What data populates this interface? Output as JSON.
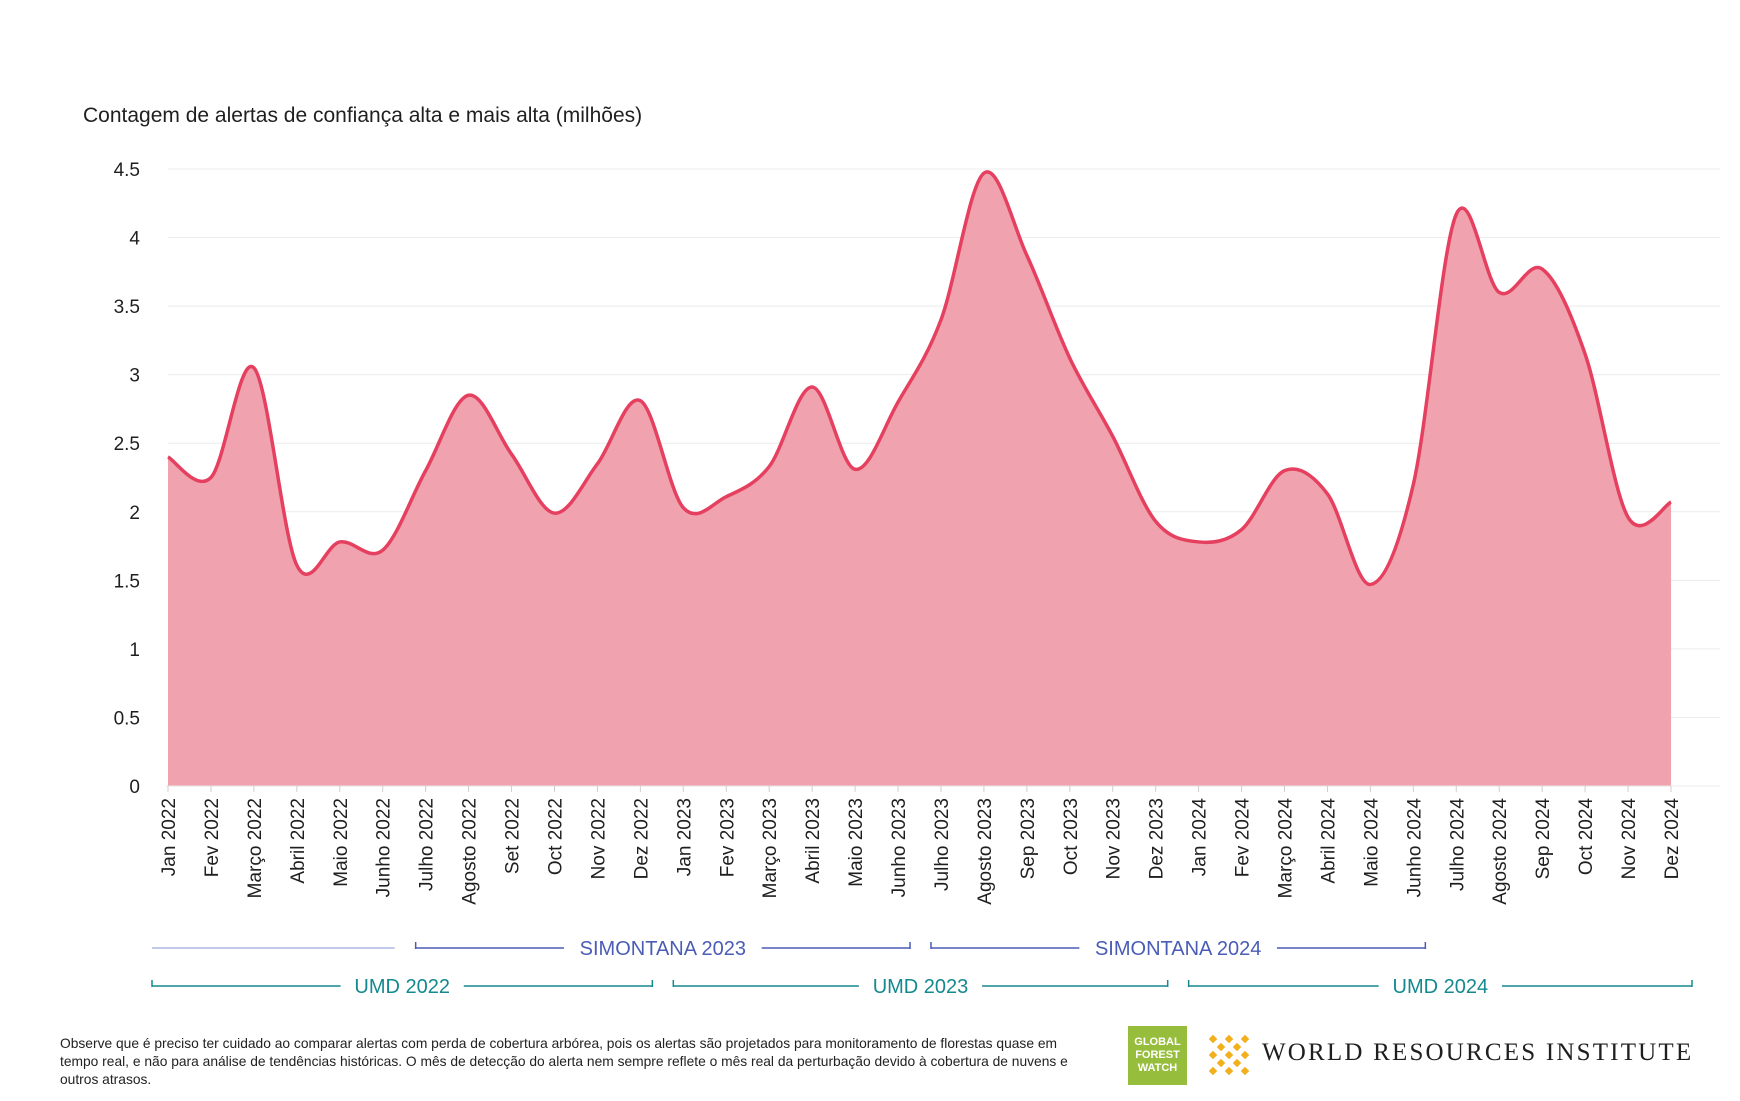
{
  "chart_data": {
    "type": "area",
    "ylabel": "Contagem de alertas de confiança alta e mais alta (milhões)",
    "ylim": [
      0,
      4.5
    ],
    "yticks": [
      "0",
      "0.5",
      "1",
      "1.5",
      "2",
      "2.5",
      "3",
      "3.5",
      "4",
      "4.5"
    ],
    "grid": true,
    "categories": [
      "Jan 2022",
      "Fev 2022",
      "Março 2022",
      "Abril 2022",
      "Maio 2022",
      "Junho 2022",
      "Julho 2022",
      "Agosto 2022",
      "Set 2022",
      "Oct 2022",
      "Nov 2022",
      "Dez 2022",
      "Jan 2023",
      "Fev 2023",
      "Março 2023",
      "Abril 2023",
      "Maio 2023",
      "Junho 2023",
      "Julho 2023",
      "Agosto 2023",
      "Sep 2023",
      "Oct 2023",
      "Nov 2023",
      "Dez 2023",
      "Jan 2024",
      "Fev 2024",
      "Março 2024",
      "Abril 2024",
      "Maio 2024",
      "Junho 2024",
      "Julho 2024",
      "Agosto 2024",
      "Sep 2024",
      "Oct 2024",
      "Nov 2024",
      "Dez 2024"
    ],
    "values": [
      2.4,
      2.25,
      3.05,
      1.61,
      1.78,
      1.72,
      2.3,
      2.85,
      2.42,
      1.99,
      2.35,
      2.81,
      2.03,
      2.11,
      2.33,
      2.91,
      2.31,
      2.8,
      3.4,
      4.47,
      3.87,
      3.12,
      2.55,
      1.93,
      1.78,
      1.87,
      2.3,
      2.13,
      1.47,
      2.2,
      4.17,
      3.6,
      3.77,
      3.15,
      1.96,
      2.07
    ],
    "fill_color": "#f0a2ae",
    "line_color": "#e5405f",
    "brackets": [
      {
        "label": "",
        "start": 0,
        "end": 5,
        "color": "#aeb9e6"
      },
      {
        "label": "SIMONTANA 2023",
        "start": 6,
        "end": 17,
        "color": "#4a5cb5"
      },
      {
        "label": "SIMONTANA 2024",
        "start": 18,
        "end": 29,
        "color": "#4a5cb5"
      },
      {
        "label": "UMD 2022",
        "start": 0,
        "end": 11,
        "color": "#14898f"
      },
      {
        "label": "UMD 2023",
        "start": 12,
        "end": 23,
        "color": "#14898f"
      },
      {
        "label": "UMD 2024",
        "start": 24,
        "end": 35,
        "color": "#14898f"
      }
    ]
  },
  "footnote": "Observe que é preciso ter cuidado ao comparar alertas com perda de cobertura arbórea, pois os alertas são projetados para monitoramento de florestas quase em tempo real, e não para análise de tendências históricas. O mês de detecção do alerta nem sempre reflete o mês real da perturbação devido à cobertura de nuvens e outros atrasos.",
  "logos": {
    "gfw": [
      "GLOBAL",
      "FOREST",
      "WATCH"
    ],
    "gfw_color": "#97bd3d",
    "wri_name": "WORLD RESOURCES INSTITUTE",
    "wri_mark_color": "#f2b01c"
  }
}
